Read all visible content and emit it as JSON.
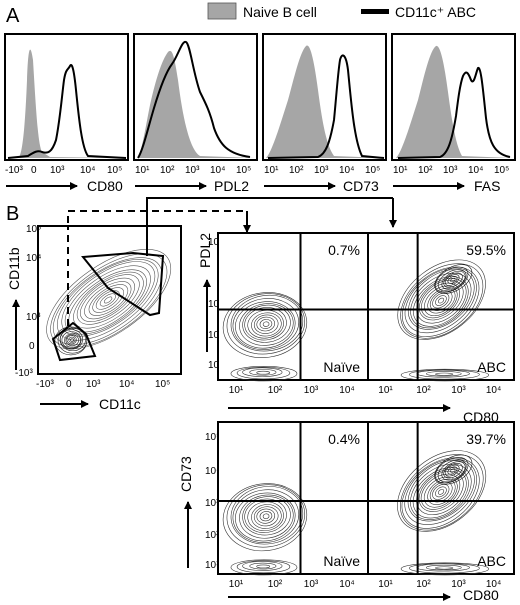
{
  "panel_a": {
    "letter": "A",
    "legend": [
      {
        "label": "Naive B cell",
        "style": "filled-gray",
        "color": "#a6a6a6"
      },
      {
        "label": "CD11c⁺ ABC",
        "style": "black-line",
        "color": "#000000"
      }
    ],
    "histograms": [
      {
        "marker": "CD80",
        "ticks": [
          "-10³",
          "0",
          "10³",
          "10⁴",
          "10⁵"
        ]
      },
      {
        "marker": "PDL2",
        "ticks": [
          "10¹",
          "10²",
          "10³",
          "10⁴",
          "10⁵"
        ]
      },
      {
        "marker": "CD73",
        "ticks": [
          "10¹",
          "10²",
          "10³",
          "10⁴",
          "10⁵"
        ]
      },
      {
        "marker": "FAS",
        "ticks": [
          "10¹",
          "10²",
          "10³",
          "10⁴",
          "10⁵"
        ]
      }
    ]
  },
  "panel_b": {
    "letter": "B",
    "gating_plot": {
      "xlabel": "CD11c",
      "ylabel": "CD11b",
      "xticks": [
        "-10³",
        "0",
        "10³",
        "10⁴",
        "10⁵"
      ],
      "yticks": [
        "10⁵",
        "10⁴",
        "10³",
        "0",
        "-10³"
      ]
    },
    "row1": {
      "ylabel": "PDL2",
      "yticks": [
        "10⁵",
        "10⁴",
        "10³",
        "10²"
      ],
      "xlabel": "CD80",
      "plots": [
        {
          "percent": "0.7%",
          "label": "Naïve",
          "xticks": [
            "10¹",
            "10²",
            "10³",
            "10⁴"
          ]
        },
        {
          "percent": "59.5%",
          "label": "ABC",
          "xticks": [
            "10¹",
            "10²",
            "10³",
            "10⁴"
          ]
        }
      ]
    },
    "row2": {
      "ylabel": "CD73",
      "yticks": [
        "10⁵",
        "10⁴",
        "10³",
        "10²",
        "10¹"
      ],
      "xlabel": "CD80",
      "plots": [
        {
          "percent": "0.4%",
          "label": "Naïve",
          "xticks": [
            "10¹",
            "10²",
            "10³",
            "10⁴"
          ]
        },
        {
          "percent": "39.7%",
          "label": "ABC",
          "xticks": [
            "10¹",
            "10²",
            "10³",
            "10⁴"
          ]
        }
      ]
    }
  },
  "chart_data": [
    {
      "type": "area",
      "panel": "A",
      "subtype": "flow-cytometry-histogram-overlay",
      "series": [
        {
          "name": "Naive B cell"
        },
        {
          "name": "CD11c⁺ ABC"
        }
      ],
      "histograms": [
        {
          "xlabel": "CD80",
          "naive_peak_x": "0",
          "abc_peak_x": "10³–10⁴"
        },
        {
          "xlabel": "PDL2",
          "naive_peak_x": "10²",
          "abc_peak_x": "10²–10³"
        },
        {
          "xlabel": "CD73",
          "naive_peak_x": "10²",
          "abc_peak_x": "10³"
        },
        {
          "xlabel": "FAS",
          "naive_peak_x": "10²",
          "abc_peak_x": "10³–10⁴"
        }
      ]
    },
    {
      "type": "scatter",
      "panel": "B",
      "subtype": "contour-plot",
      "plots": [
        {
          "x": "CD11c",
          "y": "CD11b",
          "gates": 2
        },
        {
          "x": "CD80",
          "y": "PDL2",
          "population": "Naïve",
          "upper_right_percent": 0.7
        },
        {
          "x": "CD80",
          "y": "PDL2",
          "population": "ABC",
          "upper_right_percent": 59.5
        },
        {
          "x": "CD80",
          "y": "CD73",
          "population": "Naïve",
          "upper_right_percent": 0.4
        },
        {
          "x": "CD80",
          "y": "CD73",
          "population": "ABC",
          "upper_right_percent": 39.7
        }
      ]
    }
  ]
}
